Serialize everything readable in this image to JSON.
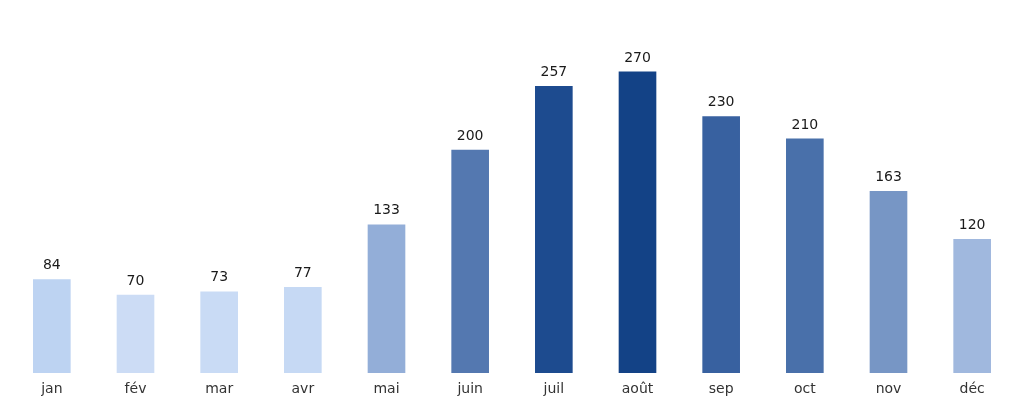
{
  "chart_data": {
    "type": "bar",
    "categories": [
      "jan",
      "fév",
      "mar",
      "avr",
      "mai",
      "juin",
      "juil",
      "août",
      "sep",
      "oct",
      "nov",
      "déc"
    ],
    "values": [
      84,
      70,
      73,
      77,
      133,
      200,
      257,
      270,
      230,
      210,
      163,
      120
    ],
    "colors": [
      "#bdd3f2",
      "#ccdcf5",
      "#c9dbf5",
      "#c6d9f4",
      "#93aed8",
      "#5478b0",
      "#1d4b8f",
      "#134286",
      "#3861a0",
      "#4970aa",
      "#7796c5",
      "#a0b8de"
    ],
    "tick_labels": "x",
    "data_labels": true
  }
}
